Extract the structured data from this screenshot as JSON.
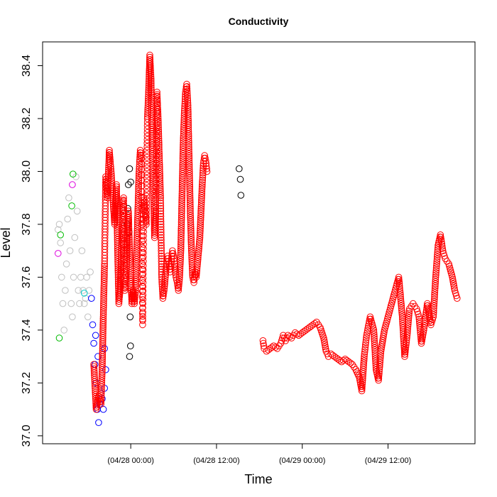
{
  "chart_data": {
    "type": "scatter",
    "title": "Conductivity",
    "xlabel": "Time",
    "ylabel": "Level",
    "x_tick_labels": [
      {
        "value": "2010-04-28T00:00",
        "label": "(04/28 00:00)"
      },
      {
        "value": "2010-04-28T12:00",
        "label": "(04/28 12:00)"
      },
      {
        "value": "2010-04-29T00:00",
        "label": "(04/29 00:00)"
      },
      {
        "value": "2010-04-29T12:00",
        "label": "(04/29 12:00)"
      }
    ],
    "xlim": [
      "2010-04-27T11:40",
      "2010-04-30T00:10"
    ],
    "ylim": [
      36.97,
      38.49
    ],
    "yticks": [
      37.0,
      37.2,
      37.4,
      37.6,
      37.8,
      38.0,
      38.2,
      38.4
    ],
    "grid": false,
    "marker": "open-circle",
    "series": [
      {
        "color": "#c0c0c0",
        "points": [
          [
            "2010-04-27T13:50",
            37.78
          ],
          [
            "2010-04-27T14:00",
            37.8
          ],
          [
            "2010-04-27T14:10",
            37.73
          ],
          [
            "2010-04-27T14:20",
            37.6
          ],
          [
            "2010-04-27T14:30",
            37.5
          ],
          [
            "2010-04-27T14:40",
            37.4
          ],
          [
            "2010-04-27T14:50",
            37.55
          ],
          [
            "2010-04-27T15:00",
            37.65
          ],
          [
            "2010-04-27T15:10",
            37.82
          ],
          [
            "2010-04-27T15:20",
            37.9
          ],
          [
            "2010-04-27T15:30",
            37.7
          ],
          [
            "2010-04-27T15:40",
            37.5
          ],
          [
            "2010-04-27T15:50",
            37.45
          ],
          [
            "2010-04-27T16:00",
            37.6
          ],
          [
            "2010-04-27T16:10",
            37.75
          ],
          [
            "2010-04-27T16:20",
            37.98
          ],
          [
            "2010-04-27T16:30",
            37.85
          ],
          [
            "2010-04-27T16:40",
            37.55
          ],
          [
            "2010-04-27T16:50",
            37.5
          ],
          [
            "2010-04-27T17:00",
            37.6
          ],
          [
            "2010-04-27T17:10",
            37.7
          ],
          [
            "2010-04-27T17:20",
            37.55
          ],
          [
            "2010-04-27T17:30",
            37.5
          ],
          [
            "2010-04-27T17:40",
            37.52
          ],
          [
            "2010-04-27T17:50",
            37.6
          ],
          [
            "2010-04-27T18:00",
            37.45
          ],
          [
            "2010-04-27T18:10",
            37.55
          ],
          [
            "2010-04-27T18:20",
            37.62
          ]
        ]
      },
      {
        "color": "#dd00dd",
        "points": [
          [
            "2010-04-27T13:50",
            37.69
          ],
          [
            "2010-04-27T15:50",
            37.95
          ]
        ]
      },
      {
        "color": "#00bb00",
        "points": [
          [
            "2010-04-27T14:00",
            37.37
          ],
          [
            "2010-04-27T15:45",
            37.87
          ],
          [
            "2010-04-27T15:55",
            37.99
          ],
          [
            "2010-04-27T14:10",
            37.76
          ]
        ]
      },
      {
        "color": "#00cccc",
        "points": [
          [
            "2010-04-27T17:30",
            37.54
          ]
        ]
      },
      {
        "color": "#0000ff",
        "points": [
          [
            "2010-04-27T18:30",
            37.52
          ],
          [
            "2010-04-27T18:40",
            37.42
          ],
          [
            "2010-04-27T18:50",
            37.35
          ],
          [
            "2010-04-27T19:00",
            37.27
          ],
          [
            "2010-04-27T19:10",
            37.2
          ],
          [
            "2010-04-27T19:20",
            37.1
          ],
          [
            "2010-04-27T19:30",
            37.05
          ],
          [
            "2010-04-27T19:40",
            37.12
          ],
          [
            "2010-04-27T19:50",
            37.16
          ],
          [
            "2010-04-27T20:00",
            37.14
          ],
          [
            "2010-04-27T20:10",
            37.1
          ],
          [
            "2010-04-27T20:20",
            37.18
          ],
          [
            "2010-04-27T20:30",
            37.25
          ],
          [
            "2010-04-27T20:20",
            37.33
          ],
          [
            "2010-04-27T19:05",
            37.38
          ],
          [
            "2010-04-27T19:25",
            37.3
          ]
        ]
      },
      {
        "color": "#000000",
        "points": [
          [
            "2010-04-27T23:30",
            37.8
          ],
          [
            "2010-04-27T23:40",
            37.95
          ],
          [
            "2010-04-27T23:50",
            38.01
          ],
          [
            "2010-04-28T00:00",
            37.96
          ],
          [
            "2010-04-27T23:35",
            37.86
          ],
          [
            "2010-04-27T23:45",
            37.77
          ],
          [
            "2010-04-27T23:55",
            37.45
          ],
          [
            "2010-04-27T23:58",
            37.34
          ],
          [
            "2010-04-27T23:50",
            37.3
          ],
          [
            "2010-04-28T15:10",
            38.01
          ],
          [
            "2010-04-28T15:20",
            37.97
          ],
          [
            "2010-04-28T15:25",
            37.91
          ]
        ]
      },
      {
        "color": "#ff0000",
        "points": [
          [
            "2010-04-27T18:50",
            37.27
          ],
          [
            "2010-04-27T19:10",
            37.1
          ],
          [
            "2010-04-27T19:30",
            37.15
          ],
          [
            "2010-04-27T19:50",
            37.12
          ],
          [
            "2010-04-27T20:00",
            37.25
          ],
          [
            "2010-04-27T20:10",
            37.46
          ],
          [
            "2010-04-27T20:20",
            37.65
          ],
          [
            "2010-04-27T20:30",
            37.98
          ],
          [
            "2010-04-27T20:45",
            37.9
          ],
          [
            "2010-04-27T21:00",
            38.08
          ],
          [
            "2010-04-27T21:15",
            38.0
          ],
          [
            "2010-04-27T21:30",
            37.9
          ],
          [
            "2010-04-27T21:45",
            37.8
          ],
          [
            "2010-04-27T22:00",
            37.95
          ],
          [
            "2010-04-27T22:10",
            37.7
          ],
          [
            "2010-04-27T22:20",
            37.5
          ],
          [
            "2010-04-27T22:30",
            37.55
          ],
          [
            "2010-04-27T22:40",
            37.65
          ],
          [
            "2010-04-27T22:50",
            37.8
          ],
          [
            "2010-04-27T23:00",
            37.9
          ],
          [
            "2010-04-27T23:10",
            37.55
          ],
          [
            "2010-04-27T23:20",
            37.6
          ],
          [
            "2010-04-27T23:30",
            37.75
          ],
          [
            "2010-04-27T23:40",
            37.85
          ],
          [
            "2010-04-27T23:50",
            37.7
          ],
          [
            "2010-04-28T00:00",
            37.6
          ],
          [
            "2010-04-28T00:10",
            37.5
          ],
          [
            "2010-04-28T00:20",
            37.55
          ],
          [
            "2010-04-28T00:30",
            37.5
          ],
          [
            "2010-04-28T00:40",
            37.55
          ],
          [
            "2010-04-28T00:50",
            37.7
          ],
          [
            "2010-04-28T01:00",
            37.85
          ],
          [
            "2010-04-28T01:10",
            38.0
          ],
          [
            "2010-04-28T01:20",
            38.08
          ],
          [
            "2010-04-28T01:30",
            38.05
          ],
          [
            "2010-04-28T01:40",
            37.42
          ],
          [
            "2010-04-28T01:50",
            37.9
          ],
          [
            "2010-04-28T02:00",
            37.85
          ],
          [
            "2010-04-28T02:10",
            37.8
          ],
          [
            "2010-04-28T02:20",
            38.2
          ],
          [
            "2010-04-28T02:30",
            38.3
          ],
          [
            "2010-04-28T02:40",
            38.44
          ],
          [
            "2010-04-28T02:50",
            38.35
          ],
          [
            "2010-04-28T03:00",
            38.1
          ],
          [
            "2010-04-28T03:10",
            37.95
          ],
          [
            "2010-04-28T03:20",
            37.75
          ],
          [
            "2010-04-28T03:30",
            37.85
          ],
          [
            "2010-04-28T03:40",
            38.3
          ],
          [
            "2010-04-28T03:50",
            38.2
          ],
          [
            "2010-04-28T04:00",
            38.05
          ],
          [
            "2010-04-28T04:10",
            37.9
          ],
          [
            "2010-04-28T04:20",
            37.6
          ],
          [
            "2010-04-28T04:30",
            37.52
          ],
          [
            "2010-04-28T04:40",
            37.55
          ],
          [
            "2010-04-28T04:50",
            37.6
          ],
          [
            "2010-04-28T05:00",
            37.65
          ],
          [
            "2010-04-28T05:10",
            37.68
          ],
          [
            "2010-04-28T05:20",
            37.65
          ],
          [
            "2010-04-28T05:30",
            37.62
          ],
          [
            "2010-04-28T05:40",
            37.66
          ],
          [
            "2010-04-28T05:50",
            37.7
          ],
          [
            "2010-04-28T06:00",
            37.68
          ],
          [
            "2010-04-28T06:10",
            37.65
          ],
          [
            "2010-04-28T06:20",
            37.6
          ],
          [
            "2010-04-28T06:30",
            37.58
          ],
          [
            "2010-04-28T06:40",
            37.55
          ],
          [
            "2010-04-28T06:50",
            37.6
          ],
          [
            "2010-04-28T07:00",
            37.7
          ],
          [
            "2010-04-28T07:10",
            37.9
          ],
          [
            "2010-04-28T07:20",
            38.1
          ],
          [
            "2010-04-28T07:30",
            38.22
          ],
          [
            "2010-04-28T07:40",
            38.3
          ],
          [
            "2010-04-28T07:50",
            38.33
          ],
          [
            "2010-04-28T08:00",
            38.25
          ],
          [
            "2010-04-28T08:10",
            38.05
          ],
          [
            "2010-04-28T08:20",
            37.85
          ],
          [
            "2010-04-28T08:30",
            37.7
          ],
          [
            "2010-04-28T08:40",
            37.6
          ],
          [
            "2010-04-28T08:50",
            37.58
          ],
          [
            "2010-04-28T09:00",
            37.62
          ],
          [
            "2010-04-28T09:10",
            37.6
          ],
          [
            "2010-04-28T09:20",
            37.65
          ],
          [
            "2010-04-28T09:30",
            37.7
          ],
          [
            "2010-04-28T09:40",
            37.75
          ],
          [
            "2010-04-28T09:50",
            37.85
          ],
          [
            "2010-04-28T10:00",
            37.95
          ],
          [
            "2010-04-28T10:10",
            38.03
          ],
          [
            "2010-04-28T10:20",
            38.06
          ],
          [
            "2010-04-28T10:30",
            38.04
          ],
          [
            "2010-04-28T10:40",
            38.0
          ],
          [
            "2010-04-28T18:30",
            37.36
          ],
          [
            "2010-04-28T18:40",
            37.33
          ],
          [
            "2010-04-28T19:00",
            37.32
          ],
          [
            "2010-04-28T19:30",
            37.33
          ],
          [
            "2010-04-28T20:00",
            37.34
          ],
          [
            "2010-04-28T20:30",
            37.33
          ],
          [
            "2010-04-28T21:00",
            37.35
          ],
          [
            "2010-04-28T21:20",
            37.38
          ],
          [
            "2010-04-28T21:40",
            37.36
          ],
          [
            "2010-04-28T22:00",
            37.38
          ],
          [
            "2010-04-28T22:30",
            37.37
          ],
          [
            "2010-04-28T23:00",
            37.39
          ],
          [
            "2010-04-28T23:30",
            37.38
          ],
          [
            "2010-04-29T00:00",
            37.39
          ],
          [
            "2010-04-29T00:30",
            37.4
          ],
          [
            "2010-04-29T01:00",
            37.41
          ],
          [
            "2010-04-29T01:30",
            37.42
          ],
          [
            "2010-04-29T02:00",
            37.43
          ],
          [
            "2010-04-29T02:30",
            37.41
          ],
          [
            "2010-04-29T03:00",
            37.37
          ],
          [
            "2010-04-29T03:20",
            37.32
          ],
          [
            "2010-04-29T03:40",
            37.3
          ],
          [
            "2010-04-29T04:00",
            37.31
          ],
          [
            "2010-04-29T04:30",
            37.3
          ],
          [
            "2010-04-29T05:00",
            37.29
          ],
          [
            "2010-04-29T05:30",
            37.28
          ],
          [
            "2010-04-29T06:00",
            37.29
          ],
          [
            "2010-04-29T06:30",
            37.28
          ],
          [
            "2010-04-29T07:00",
            37.27
          ],
          [
            "2010-04-29T07:30",
            37.25
          ],
          [
            "2010-04-29T08:00",
            37.22
          ],
          [
            "2010-04-29T08:20",
            37.17
          ],
          [
            "2010-04-29T08:40",
            37.3
          ],
          [
            "2010-04-29T09:00",
            37.38
          ],
          [
            "2010-04-29T09:30",
            37.45
          ],
          [
            "2010-04-29T10:00",
            37.4
          ],
          [
            "2010-04-29T10:20",
            37.25
          ],
          [
            "2010-04-29T10:40",
            37.21
          ],
          [
            "2010-04-29T11:00",
            37.32
          ],
          [
            "2010-04-29T11:30",
            37.4
          ],
          [
            "2010-04-29T12:00",
            37.45
          ],
          [
            "2010-04-29T12:30",
            37.5
          ],
          [
            "2010-04-29T13:00",
            37.55
          ],
          [
            "2010-04-29T13:30",
            37.6
          ],
          [
            "2010-04-29T14:00",
            37.45
          ],
          [
            "2010-04-29T14:20",
            37.3
          ],
          [
            "2010-04-29T14:40",
            37.38
          ],
          [
            "2010-04-29T15:00",
            37.48
          ],
          [
            "2010-04-29T15:30",
            37.5
          ],
          [
            "2010-04-29T16:00",
            37.48
          ],
          [
            "2010-04-29T16:20",
            37.45
          ],
          [
            "2010-04-29T16:40",
            37.35
          ],
          [
            "2010-04-29T17:00",
            37.4
          ],
          [
            "2010-04-29T17:30",
            37.5
          ],
          [
            "2010-04-29T18:00",
            37.42
          ],
          [
            "2010-04-29T18:20",
            37.45
          ],
          [
            "2010-04-29T18:40",
            37.6
          ],
          [
            "2010-04-29T19:00",
            37.72
          ],
          [
            "2010-04-29T19:20",
            37.76
          ],
          [
            "2010-04-29T19:40",
            37.7
          ],
          [
            "2010-04-29T20:00",
            37.67
          ],
          [
            "2010-04-29T20:30",
            37.65
          ],
          [
            "2010-04-29T21:00",
            37.6
          ],
          [
            "2010-04-29T21:20",
            37.55
          ],
          [
            "2010-04-29T21:40",
            37.52
          ]
        ]
      }
    ]
  }
}
